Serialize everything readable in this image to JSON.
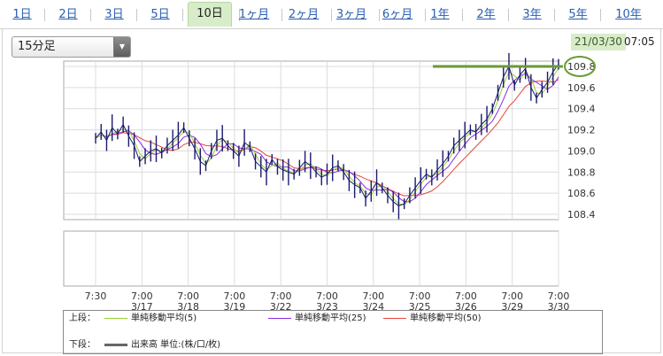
{
  "tabs": [
    {
      "label": "1日",
      "active": false
    },
    {
      "label": "2日",
      "active": false
    },
    {
      "label": "3日",
      "active": false
    },
    {
      "label": "5日",
      "active": false
    },
    {
      "label": "10日",
      "active": true
    },
    {
      "label": "1ヶ月",
      "active": false
    },
    {
      "label": "2ヶ月",
      "active": false
    },
    {
      "label": "3ヶ月",
      "active": false
    },
    {
      "label": "6ヶ月",
      "active": false
    },
    {
      "label": "1年",
      "active": false
    },
    {
      "label": "2年",
      "active": false
    },
    {
      "label": "3年",
      "active": false
    },
    {
      "label": "5年",
      "active": false
    },
    {
      "label": "10年",
      "active": false
    }
  ],
  "interval_select": {
    "value": "15分足"
  },
  "timestamp": {
    "date": "21/03/30",
    "time": "07:05"
  },
  "colors": {
    "active_tab_bg": "#d7ecc8",
    "highlight_line": "#6a9a35",
    "price": "#1a1a6e",
    "sma5": "#9acd32",
    "sma25": "#8a2be2",
    "sma50": "#e8463a",
    "volume": "#666666"
  },
  "legend": {
    "upper_label": "上段：",
    "lower_label": "下段：",
    "items": [
      {
        "name": "単純移動平均(5)",
        "color": "#9acd32"
      },
      {
        "name": "単純移動平均(25)",
        "color": "#8a2be2"
      },
      {
        "name": "単純移動平均(50)",
        "color": "#e8463a"
      }
    ],
    "lower_item": {
      "name": "出来高 単位:(株/口/枚)",
      "color": "#666666"
    }
  },
  "chart_data": {
    "type": "line",
    "ylim": [
      108.35,
      109.85
    ],
    "yticks": [
      "109.8",
      "109.6",
      "109.4",
      "109.2",
      "109.0",
      "108.8",
      "108.6",
      "108.4"
    ],
    "ytick_values": [
      109.8,
      109.6,
      109.4,
      109.2,
      109.0,
      108.8,
      108.6,
      108.4
    ],
    "x_labels": [
      [
        "7:30",
        ""
      ],
      [
        "7:00",
        "3/17"
      ],
      [
        "7:00",
        "3/18"
      ],
      [
        "7:00",
        "3/19"
      ],
      [
        "7:00",
        "3/22"
      ],
      [
        "7:00",
        "3/23"
      ],
      [
        "7:00",
        "3/24"
      ],
      [
        "7:00",
        "3/25"
      ],
      [
        "7:00",
        "3/26"
      ],
      [
        "7:00",
        "3/29"
      ],
      [
        "7:00",
        "3/30"
      ]
    ],
    "series": [
      {
        "values": [
          109.12,
          109.18,
          109.1,
          109.22,
          109.16,
          109.25,
          109.14,
          109.05,
          108.9,
          108.95,
          109.0,
          109.02,
          108.98,
          109.05,
          109.1,
          109.15,
          109.22,
          109.12,
          109.02,
          108.9,
          108.86,
          109.0,
          109.1,
          109.12,
          109.05,
          109.0,
          108.95,
          109.08,
          109.04,
          108.9,
          108.85,
          108.8,
          108.92,
          108.85,
          108.82,
          108.8,
          108.78,
          108.84,
          108.9,
          108.86,
          108.8,
          108.75,
          108.78,
          108.84,
          108.86,
          108.8,
          108.72,
          108.68,
          108.65,
          108.55,
          108.62,
          108.7,
          108.65,
          108.58,
          108.52,
          108.48,
          108.5,
          108.58,
          108.65,
          108.72,
          108.78,
          108.75,
          108.82,
          108.88,
          108.95,
          109.05,
          109.1,
          109.15,
          109.2,
          109.18,
          109.25,
          109.3,
          109.4,
          109.55,
          109.7,
          109.8,
          109.62,
          109.72,
          109.78,
          109.6,
          109.5,
          109.58,
          109.65,
          109.75,
          109.82
        ]
      }
    ],
    "highlight_level": 109.8,
    "volume_panel": {
      "visible": true
    }
  }
}
